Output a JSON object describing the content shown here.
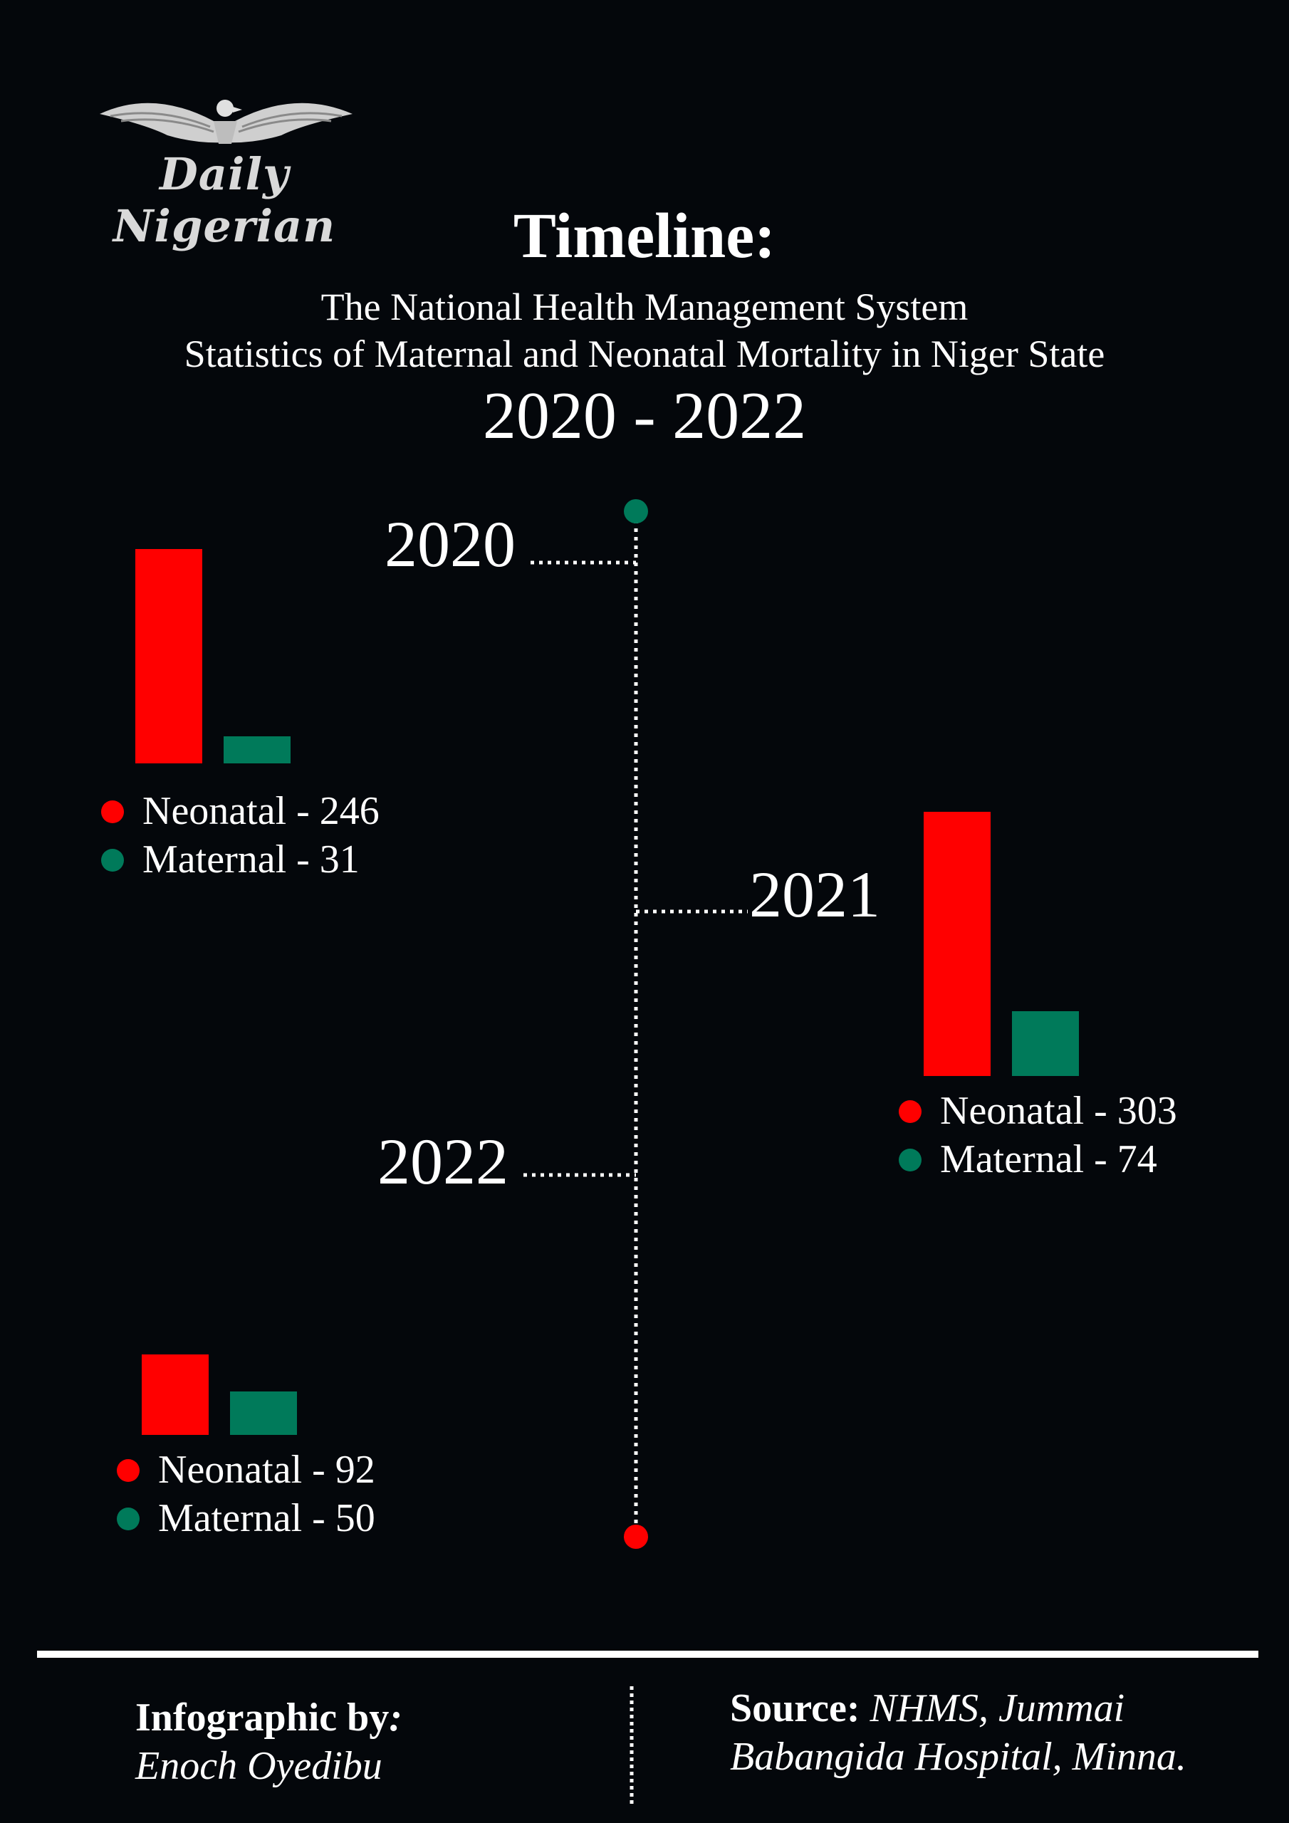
{
  "brand": {
    "name": "Daily Nigerian"
  },
  "header": {
    "title": "Timeline:",
    "subtitle_line1": "The National Health Management System",
    "subtitle_line2": "Statistics of Maternal and Neonatal Mortality in Niger State",
    "range": "2020 - 2022"
  },
  "colors": {
    "neonatal": "#ff0000",
    "maternal": "#007a5a",
    "background": "#04070b",
    "timeline_dot_top": "#007a5a",
    "timeline_dot_bottom": "#ff0000"
  },
  "chart_data": {
    "type": "bar",
    "title": "Timeline: Statistics of Maternal and Neonatal Mortality in Niger State 2020 - 2022",
    "categories": [
      "2020",
      "2021",
      "2022"
    ],
    "series": [
      {
        "name": "Neonatal",
        "values": [
          246,
          303,
          92
        ]
      },
      {
        "name": "Maternal",
        "values": [
          31,
          74,
          50
        ]
      }
    ],
    "labels": {
      "2020": {
        "neonatal": "Neonatal - 246",
        "maternal": "Maternal - 31"
      },
      "2021": {
        "neonatal": "Neonatal - 303",
        "maternal": "Maternal - 74"
      },
      "2022": {
        "neonatal": "Neonatal - 92",
        "maternal": "Maternal - 50"
      }
    }
  },
  "footer": {
    "credit_label": "Infographic by",
    "credit_colon": ":",
    "credit_name": "Enoch Oyedibu",
    "source_label": "Source:",
    "source_line1": "NHMS, Jummai",
    "source_line2": "Babangida Hospital, Minna."
  }
}
